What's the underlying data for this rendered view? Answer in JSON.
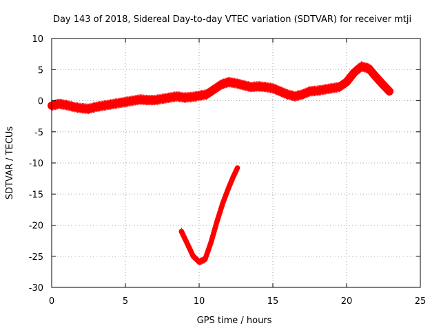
{
  "chart_data": {
    "type": "scatter",
    "title": "Day 143 of 2018, Sidereal Day-to-day VTEC variation (SDTVAR) for receiver mtji",
    "xlabel": "GPS time / hours",
    "ylabel": "SDTVAR / TECUs",
    "xlim": [
      0,
      25
    ],
    "ylim": [
      -30,
      10
    ],
    "xticks": [
      0,
      5,
      10,
      15,
      20,
      25
    ],
    "yticks": [
      -30,
      -25,
      -20,
      -15,
      -10,
      -5,
      0,
      5,
      10
    ],
    "grid": true,
    "series_color": "#ff0000",
    "series": [
      {
        "name": "main-track",
        "band": 1.0,
        "points": [
          [
            0.0,
            -0.8
          ],
          [
            0.5,
            -0.5
          ],
          [
            1.0,
            -0.7
          ],
          [
            1.5,
            -1.0
          ],
          [
            2.0,
            -1.2
          ],
          [
            2.5,
            -1.3
          ],
          [
            3.0,
            -1.0
          ],
          [
            3.5,
            -0.8
          ],
          [
            4.0,
            -0.6
          ],
          [
            4.5,
            -0.4
          ],
          [
            5.0,
            -0.2
          ],
          [
            5.5,
            0.0
          ],
          [
            6.0,
            0.2
          ],
          [
            6.5,
            0.1
          ],
          [
            7.0,
            0.1
          ],
          [
            7.5,
            0.3
          ],
          [
            8.0,
            0.5
          ],
          [
            8.5,
            0.7
          ],
          [
            9.0,
            0.5
          ],
          [
            9.5,
            0.6
          ],
          [
            10.0,
            0.8
          ],
          [
            10.5,
            1.0
          ],
          [
            11.0,
            1.8
          ],
          [
            11.5,
            2.6
          ],
          [
            12.0,
            3.0
          ],
          [
            12.5,
            2.8
          ],
          [
            13.0,
            2.5
          ],
          [
            13.5,
            2.2
          ],
          [
            14.0,
            2.3
          ],
          [
            14.5,
            2.2
          ],
          [
            15.0,
            2.0
          ],
          [
            15.5,
            1.5
          ],
          [
            16.0,
            1.0
          ],
          [
            16.5,
            0.7
          ],
          [
            17.0,
            1.0
          ],
          [
            17.5,
            1.5
          ],
          [
            18.0,
            1.6
          ],
          [
            18.5,
            1.8
          ],
          [
            19.0,
            2.0
          ],
          [
            19.5,
            2.2
          ],
          [
            20.0,
            3.0
          ],
          [
            20.5,
            4.5
          ],
          [
            21.0,
            5.5
          ],
          [
            21.5,
            5.2
          ],
          [
            22.0,
            3.8
          ],
          [
            22.5,
            2.5
          ],
          [
            22.9,
            1.5
          ]
        ]
      },
      {
        "name": "low-arc",
        "band": 0.5,
        "points": [
          [
            8.8,
            -21.0
          ],
          [
            9.2,
            -23.0
          ],
          [
            9.6,
            -25.0
          ],
          [
            10.0,
            -25.9
          ],
          [
            10.4,
            -25.5
          ],
          [
            10.8,
            -22.8
          ],
          [
            11.2,
            -19.5
          ],
          [
            11.6,
            -16.5
          ],
          [
            12.0,
            -14.0
          ],
          [
            12.3,
            -12.3
          ],
          [
            12.6,
            -10.8
          ]
        ]
      }
    ]
  }
}
